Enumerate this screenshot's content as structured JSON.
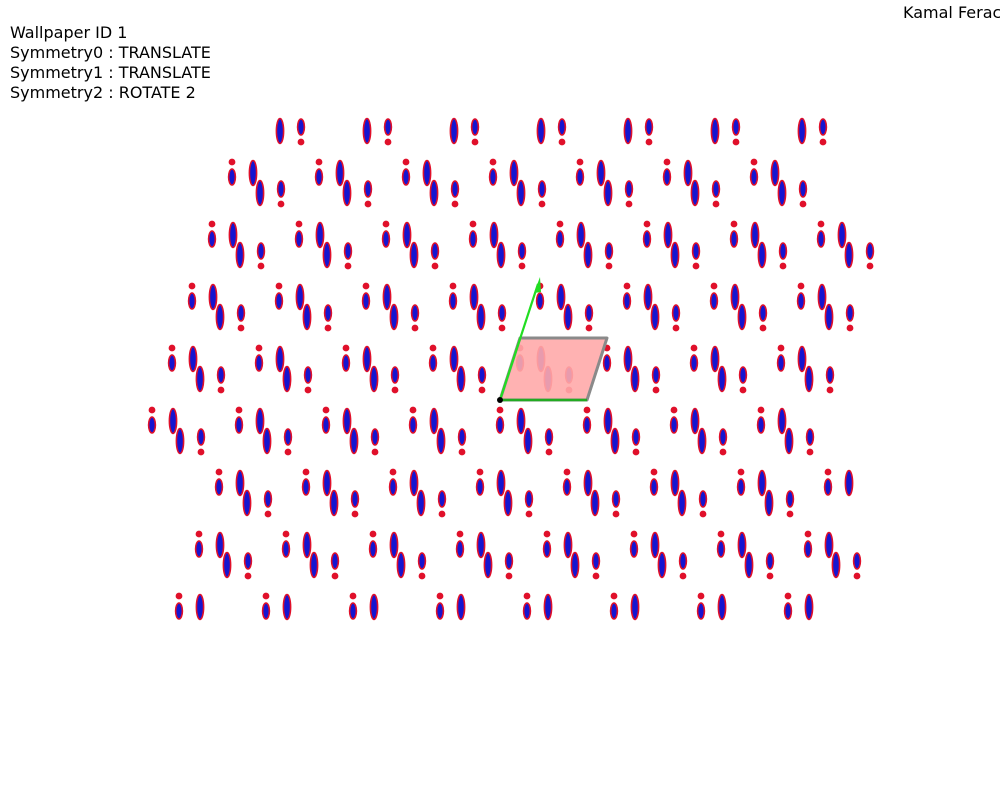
{
  "info": {
    "wallpaper_label": "Wallpaper ID 1",
    "symmetry0": "Symmetry0 : TRANSLATE",
    "symmetry1": "Symmetry1 : TRANSLATE",
    "symmetry2": "Symmetry2 : ROTATE 2"
  },
  "author": "Kamal Ferac",
  "colors": {
    "motif_fill": "#1515d0",
    "motif_outline": "#e0102a",
    "cell_fill": "#ffaaaa",
    "cell_edge": "#8a8a8a",
    "vector_a": "#22aa22",
    "vector_b": "#22dd22",
    "origin": "#000000"
  }
}
